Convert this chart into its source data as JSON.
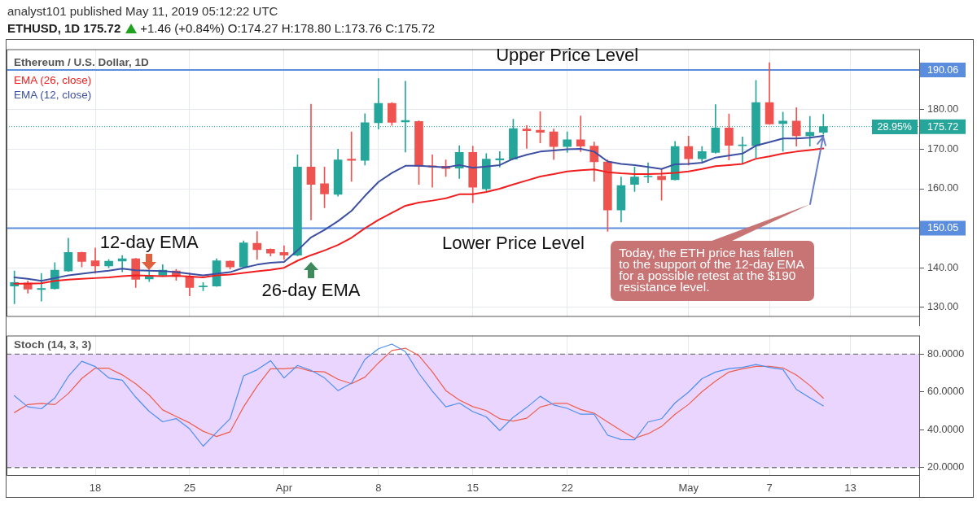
{
  "chart_data": [
    {
      "type": "candlestick",
      "title": "Ethereum / U.S. Dollar, 1D",
      "subtitle": "ETHUSD, 1D 175.72",
      "annotations": [
        "analyst101 published May 11, 2019 05:12:22 UTC",
        "+1.46 (+0.84%) O:174.27 H:178.80 L:173.76 C:175.72",
        "Today, the ETH price has fallen to the support of the 12-day EMA for a possible retest at the $190 resistance level.",
        "28.95%",
        {
          "text": "Upper Price Level",
          "x": "2019-04-22",
          "y": 190.06
        },
        {
          "text": "Lower Price Level",
          "x": "2019-04-18",
          "y": 150.05
        },
        {
          "text": "12-day EMA",
          "x": "2019-03-22",
          "y": 139.3
        },
        {
          "text": "26-day EMA",
          "x": "2019-04-03",
          "y": 143.2
        }
      ],
      "x": [
        "2019-03-12",
        "2019-03-13",
        "2019-03-14",
        "2019-03-15",
        "2019-03-16",
        "2019-03-17",
        "2019-03-18",
        "2019-03-19",
        "2019-03-20",
        "2019-03-21",
        "2019-03-22",
        "2019-03-23",
        "2019-03-24",
        "2019-03-25",
        "2019-03-26",
        "2019-03-27",
        "2019-03-28",
        "2019-03-29",
        "2019-03-30",
        "2019-03-31",
        "2019-04-01",
        "2019-04-02",
        "2019-04-03",
        "2019-04-04",
        "2019-04-05",
        "2019-04-06",
        "2019-04-07",
        "2019-04-08",
        "2019-04-09",
        "2019-04-10",
        "2019-04-11",
        "2019-04-12",
        "2019-04-13",
        "2019-04-14",
        "2019-04-15",
        "2019-04-16",
        "2019-04-17",
        "2019-04-18",
        "2019-04-19",
        "2019-04-20",
        "2019-04-21",
        "2019-04-22",
        "2019-04-23",
        "2019-04-24",
        "2019-04-25",
        "2019-04-26",
        "2019-04-27",
        "2019-04-28",
        "2019-04-29",
        "2019-04-30",
        "2019-05-01",
        "2019-05-02",
        "2019-05-03",
        "2019-05-04",
        "2019-05-05",
        "2019-05-06",
        "2019-05-07",
        "2019-05-08",
        "2019-05-09",
        "2019-05-10",
        "2019-05-11"
      ],
      "xlim": [
        "2019-03-11T10:00",
        "2019-05-18T04:00"
      ],
      "xticks": [
        {
          "value": "2019-03-18",
          "label": null
        },
        {
          "value": "2019-03-25",
          "label": null
        },
        {
          "value": "2019-04-01",
          "label": null
        },
        {
          "value": "2019-04-08",
          "label": null
        },
        {
          "value": "2019-04-15",
          "label": null
        },
        {
          "value": "2019-04-22",
          "label": null
        },
        {
          "value": "2019-05-01",
          "label": null
        },
        {
          "value": "2019-05-07",
          "label": null
        },
        {
          "value": "2019-05-13",
          "label": null
        }
      ],
      "ylim": [
        127.6,
        195.3
      ],
      "yticks": [
        {
          "value": 130,
          "label": "130.00"
        },
        {
          "value": 140,
          "label": "140.00"
        },
        {
          "value": 160,
          "label": "160.00"
        },
        {
          "value": 170,
          "label": "170.00"
        },
        {
          "value": 180,
          "label": "180.00"
        }
      ],
      "tick_labels": "y",
      "grid": true,
      "legend": "top left",
      "marker": "none",
      "ohlc": [
        [
          135.4,
          139.2,
          130.9,
          136.3
        ],
        [
          136.2,
          136.7,
          133.6,
          134.6
        ],
        [
          134.5,
          138.6,
          131.6,
          134.8
        ],
        [
          134.7,
          141.3,
          134.6,
          139.4
        ],
        [
          139.2,
          147.5,
          139.1,
          143.9
        ],
        [
          143.9,
          144.0,
          140.2,
          141.6
        ],
        [
          141.8,
          145.0,
          138.6,
          140.5
        ],
        [
          140.5,
          142.1,
          140.0,
          141.7
        ],
        [
          141.7,
          143.1,
          139.0,
          142.3
        ],
        [
          142.3,
          142.4,
          135.0,
          137.1
        ],
        [
          137.2,
          139.4,
          136.5,
          138.1
        ],
        [
          138.1,
          140.8,
          137.8,
          139.4
        ],
        [
          139.2,
          139.6,
          136.8,
          137.8
        ],
        [
          137.9,
          138.7,
          132.9,
          135.0
        ],
        [
          135.2,
          136.3,
          134.2,
          135.4
        ],
        [
          135.4,
          142.3,
          135.3,
          141.8
        ],
        [
          141.7,
          141.8,
          139.7,
          140.2
        ],
        [
          140.2,
          146.8,
          140.0,
          146.3
        ],
        [
          146.2,
          149.2,
          142.1,
          144.6
        ],
        [
          144.7,
          144.8,
          143.0,
          143.7
        ],
        [
          143.9,
          145.6,
          142.1,
          143.2
        ],
        [
          143.2,
          168.6,
          143.0,
          165.5
        ],
        [
          165.5,
          181.4,
          152.1,
          161.1
        ],
        [
          161.3,
          165.5,
          155.2,
          158.7
        ],
        [
          158.6,
          170.0,
          158.1,
          167.3
        ],
        [
          167.5,
          174.4,
          161.9,
          167.2
        ],
        [
          167.2,
          179.0,
          166.0,
          176.7
        ],
        [
          176.7,
          187.9,
          175.1,
          181.6
        ],
        [
          181.6,
          181.8,
          176.0,
          176.8
        ],
        [
          176.9,
          187.2,
          169.3,
          177.3
        ],
        [
          177.0,
          177.2,
          161.1,
          165.7
        ],
        [
          165.8,
          168.6,
          160.4,
          165.5
        ],
        [
          165.7,
          167.3,
          163.1,
          165.1
        ],
        [
          165.2,
          170.9,
          162.6,
          169.2
        ],
        [
          169.2,
          170.8,
          156.5,
          160.4
        ],
        [
          160.0,
          168.9,
          159.5,
          167.5
        ],
        [
          167.3,
          169.4,
          165.5,
          167.6
        ],
        [
          167.5,
          177.6,
          167.4,
          175.2
        ],
        [
          175.1,
          176.0,
          170.2,
          174.7
        ],
        [
          174.8,
          179.5,
          171.6,
          174.3
        ],
        [
          174.4,
          175.1,
          167.4,
          170.7
        ],
        [
          170.7,
          174.4,
          169.2,
          172.4
        ],
        [
          172.4,
          178.4,
          169.4,
          170.8
        ],
        [
          170.8,
          171.8,
          161.9,
          166.8
        ],
        [
          166.8,
          167.3,
          149.2,
          154.6
        ],
        [
          154.6,
          163.0,
          151.6,
          160.8
        ],
        [
          161.1,
          165.5,
          159.3,
          163.0
        ],
        [
          163.0,
          166.6,
          161.5,
          163.2
        ],
        [
          163.2,
          165.0,
          157.1,
          162.3
        ],
        [
          162.3,
          172.0,
          162.2,
          170.7
        ],
        [
          170.7,
          173.3,
          166.0,
          167.6
        ],
        [
          167.6,
          170.7,
          166.8,
          169.4
        ],
        [
          169.2,
          181.3,
          169.0,
          175.4
        ],
        [
          175.4,
          178.9,
          167.3,
          171.0
        ],
        [
          170.9,
          173.1,
          166.3,
          171.1
        ],
        [
          170.9,
          187.4,
          167.9,
          181.8
        ],
        [
          181.8,
          191.9,
          176.3,
          176.4
        ],
        [
          176.5,
          179.4,
          169.5,
          177.1
        ],
        [
          177.1,
          180.5,
          170.8,
          173.4
        ],
        [
          173.4,
          178.3,
          170.8,
          174.3
        ],
        [
          174.27,
          178.8,
          173.76,
          175.72
        ]
      ],
      "colors": [
        "#26a69a",
        "#ef5350",
        "#26a69a",
        "#26a69a",
        "#26a69a",
        "#ef5350",
        "#ef5350",
        "#26a69a",
        "#26a69a",
        "#ef5350",
        "#26a69a",
        "#26a69a",
        "#ef5350",
        "#ef5350",
        "#26a69a",
        "#26a69a",
        "#ef5350",
        "#26a69a",
        "#ef5350",
        "#ef5350",
        "#ef5350",
        "#26a69a",
        "#ef5350",
        "#ef5350",
        "#26a69a",
        "#ef5350",
        "#26a69a",
        "#26a69a",
        "#ef5350",
        "#26a69a",
        "#ef5350",
        "#ef5350",
        "#ef5350",
        "#26a69a",
        "#ef5350",
        "#26a69a",
        "#26a69a",
        "#26a69a",
        "#ef5350",
        "#ef5350",
        "#ef5350",
        "#26a69a",
        "#ef5350",
        "#ef5350",
        "#ef5350",
        "#26a69a",
        "#26a69a",
        "#26a69a",
        "#ef5350",
        "#26a69a",
        "#ef5350",
        "#26a69a",
        "#26a69a",
        "#ef5350",
        "#26a69a",
        "#26a69a",
        "#ef5350",
        "#26a69a",
        "#ef5350",
        "#26a69a",
        "#26a69a"
      ],
      "series": [
        {
          "type": "line",
          "name": "EMA (26, close)",
          "color": "#f01e1e",
          "values": [
            136.0,
            136.0,
            136.1,
            136.7,
            137.0,
            137.2,
            137.4,
            137.6,
            137.9,
            138.1,
            138.0,
            137.9,
            138.0,
            137.8,
            137.6,
            138.1,
            138.3,
            138.7,
            139.1,
            139.5,
            140.0,
            141.8,
            143.2,
            144.4,
            145.8,
            147.6,
            150.0,
            152.1,
            153.9,
            155.7,
            156.5,
            157.0,
            157.6,
            158.6,
            158.6,
            159.2,
            160.0,
            161.1,
            162.1,
            163.1,
            163.7,
            164.4,
            164.7,
            164.9,
            164.2,
            163.9,
            163.7,
            163.7,
            163.8,
            164.0,
            164.4,
            165.0,
            165.7,
            166.0,
            166.3,
            167.6,
            168.2,
            168.9,
            169.4,
            169.8,
            170.2
          ]
        },
        {
          "type": "line",
          "name": "EMA (12, close)",
          "color": "#3c4fa3",
          "values": [
            137.6,
            137.2,
            136.7,
            137.4,
            138.1,
            138.5,
            138.9,
            139.3,
            139.8,
            139.4,
            139.3,
            139.2,
            138.9,
            138.5,
            138.1,
            138.5,
            138.9,
            140.0,
            140.8,
            141.3,
            141.5,
            144.4,
            147.7,
            149.6,
            151.8,
            154.4,
            158.2,
            161.7,
            164.0,
            165.8,
            165.8,
            165.6,
            165.4,
            166.0,
            165.3,
            165.6,
            166.0,
            167.6,
            168.6,
            169.4,
            169.7,
            170.0,
            170.1,
            169.4,
            166.9,
            166.3,
            166.0,
            165.5,
            165.0,
            166.2,
            166.3,
            166.6,
            167.9,
            168.4,
            168.9,
            170.9,
            171.8,
            172.7,
            172.7,
            172.9,
            173.4
          ]
        }
      ],
      "ref_lines": [
        {
          "axis": "y",
          "value": 190.06,
          "label": "190.06",
          "color": "#5b8ddf"
        },
        {
          "axis": "y",
          "value": 150.05,
          "label": "150.05",
          "color": "#5b8ddf"
        },
        {
          "axis": "y",
          "value": 175.72,
          "label": "175.72",
          "color": "#26a69a",
          "line_style": "dotted"
        }
      ]
    },
    {
      "type": "line",
      "title": "Stoch (14, 3, 3)",
      "x": [
        "2019-03-12",
        "2019-03-13",
        "2019-03-14",
        "2019-03-15",
        "2019-03-16",
        "2019-03-17",
        "2019-03-18",
        "2019-03-19",
        "2019-03-20",
        "2019-03-21",
        "2019-03-22",
        "2019-03-23",
        "2019-03-24",
        "2019-03-25",
        "2019-03-26",
        "2019-03-27",
        "2019-03-28",
        "2019-03-29",
        "2019-03-30",
        "2019-03-31",
        "2019-04-01",
        "2019-04-02",
        "2019-04-03",
        "2019-04-04",
        "2019-04-05",
        "2019-04-06",
        "2019-04-07",
        "2019-04-08",
        "2019-04-09",
        "2019-04-10",
        "2019-04-11",
        "2019-04-12",
        "2019-04-13",
        "2019-04-14",
        "2019-04-15",
        "2019-04-16",
        "2019-04-17",
        "2019-04-18",
        "2019-04-19",
        "2019-04-20",
        "2019-04-21",
        "2019-04-22",
        "2019-04-23",
        "2019-04-24",
        "2019-04-25",
        "2019-04-26",
        "2019-04-27",
        "2019-04-28",
        "2019-04-29",
        "2019-04-30",
        "2019-05-01",
        "2019-05-02",
        "2019-05-03",
        "2019-05-04",
        "2019-05-05",
        "2019-05-06",
        "2019-05-07",
        "2019-05-08",
        "2019-05-09",
        "2019-05-10",
        "2019-05-11"
      ],
      "xlim": [
        "2019-03-11T10:00",
        "2019-05-18T04:00"
      ],
      "xticks": [
        {
          "value": "2019-03-18",
          "label": "18"
        },
        {
          "value": "2019-03-25",
          "label": "25"
        },
        {
          "value": "2019-04-01",
          "label": "Apr"
        },
        {
          "value": "2019-04-08",
          "label": "8"
        },
        {
          "value": "2019-04-15",
          "label": "15"
        },
        {
          "value": "2019-04-22",
          "label": "22"
        },
        {
          "value": "2019-05-01",
          "label": "May"
        },
        {
          "value": "2019-05-07",
          "label": "7"
        },
        {
          "value": "2019-05-13",
          "label": "13"
        }
      ],
      "ylim": [
        15.6,
        89.8
      ],
      "yticks": [
        {
          "value": 20,
          "label": "20.0000"
        },
        {
          "value": 40,
          "label": "40.0000"
        },
        {
          "value": 60,
          "label": "60.0000"
        },
        {
          "value": 80,
          "label": "80.0000"
        }
      ],
      "grid": true,
      "marker": "none",
      "series": [
        {
          "color": "#4d8ff0",
          "values": [
            58.0,
            52.1,
            51.1,
            56.8,
            68.2,
            76.2,
            73.4,
            67.4,
            66.2,
            57.2,
            49.7,
            44.2,
            45.9,
            40.4,
            31.3,
            38.7,
            45.9,
            68.5,
            71.7,
            76.5,
            67.4,
            74.0,
            71.4,
            67.4,
            60.7,
            64.6,
            77.2,
            82.8,
            85.3,
            81.3,
            69.8,
            60.4,
            52.1,
            54.1,
            49.6,
            46.8,
            39.6,
            46.6,
            51.8,
            57.7,
            53.1,
            51.3,
            48.2,
            48.2,
            37.1,
            34.8,
            34.7,
            44.1,
            45.8,
            54.2,
            59.9,
            67.0,
            70.5,
            72.3,
            73.0,
            74.5,
            73.0,
            71.9,
            61.3,
            56.9,
            52.6
          ]
        },
        {
          "color": "#ee5e4e",
          "values": [
            49.1,
            53.3,
            53.9,
            53.3,
            59.1,
            67.1,
            72.6,
            72.5,
            69.0,
            64.3,
            58.3,
            50.5,
            47.0,
            43.6,
            39.2,
            36.4,
            38.9,
            52.1,
            63.0,
            72.2,
            72.2,
            72.9,
            70.9,
            70.6,
            66.7,
            64.3,
            67.8,
            75.3,
            81.9,
            83.1,
            79.2,
            70.6,
            60.7,
            55.7,
            52.2,
            50.1,
            45.8,
            44.6,
            46.1,
            52.0,
            53.9,
            53.9,
            50.7,
            48.7,
            44.1,
            39.6,
            35.5,
            37.9,
            41.7,
            48.2,
            53.4,
            60.1,
            65.7,
            70.5,
            72.2,
            73.5,
            73.5,
            72.7,
            68.9,
            63.4,
            56.7
          ]
        }
      ],
      "bands": [
        {
          "axis": "y",
          "from": 20,
          "to": 80,
          "color": "#e9d5fd"
        }
      ],
      "ref_lines": [
        {
          "axis": "y",
          "value": 80,
          "color": "#787878",
          "line_style": "dashed"
        },
        {
          "axis": "y",
          "value": 20,
          "color": "#787878",
          "line_style": "dashed"
        }
      ]
    }
  ]
}
